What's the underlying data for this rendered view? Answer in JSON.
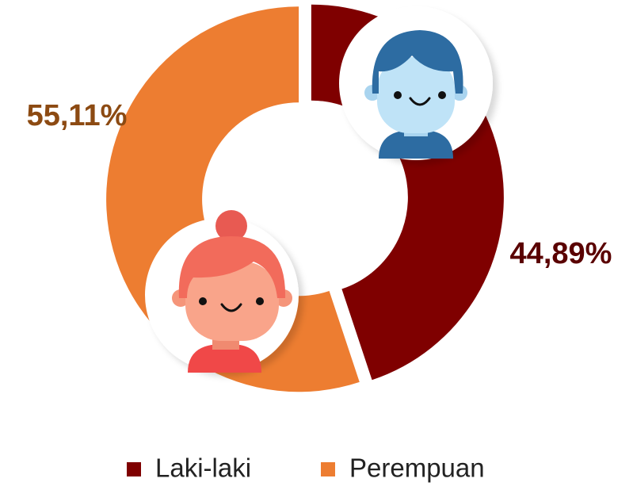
{
  "chart_data": {
    "type": "pie",
    "categories": [
      "Laki-laki",
      "Perempuan"
    ],
    "values": [
      44.89,
      55.11
    ],
    "value_labels": [
      "44,89%",
      "55,11%"
    ],
    "colors": [
      "#7f0000",
      "#ed7d31"
    ],
    "donut": true
  }
}
